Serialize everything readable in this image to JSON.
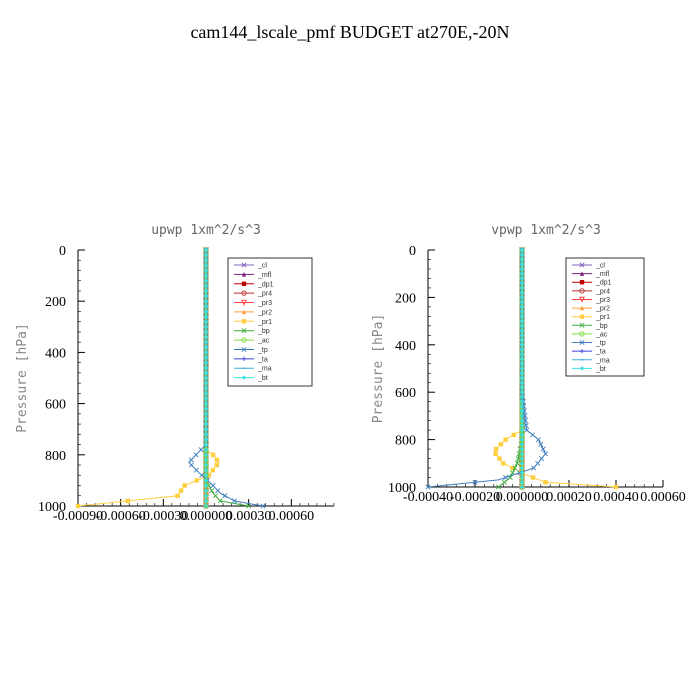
{
  "title": "cam144_lscale_pmf  BUDGET at270E,-20N",
  "chart_data": [
    {
      "type": "line",
      "title": "upwp   1xm^2/s^3",
      "ylabel": "Pressure [hPa]",
      "xlabel": "",
      "ylim": [
        1000,
        0
      ],
      "xlim": [
        -0.0009,
        0.0009
      ],
      "yticks": [
        0,
        200,
        400,
        600,
        800,
        1000
      ],
      "xticks": [
        "-0.00090",
        "-0.00060",
        "-0.00030",
        "0.000000",
        "0.00030",
        "0.00060"
      ],
      "xtick_values": [
        -0.0009,
        -0.0006,
        -0.0003,
        0,
        0.0003,
        0.0006
      ],
      "legend_position": "top-right",
      "series": [
        {
          "name": "_cl",
          "color": "#7f5fbf",
          "marker": "x",
          "x": [
            0,
            0,
            0,
            0,
            0,
            0,
            0,
            0,
            0,
            0,
            0
          ],
          "y": [
            0,
            100,
            200,
            300,
            400,
            500,
            600,
            700,
            800,
            900,
            1000
          ]
        },
        {
          "name": "_mfl",
          "color": "#7f1f7f",
          "marker": "triangle",
          "x": [
            0,
            0,
            0,
            0,
            0,
            0,
            0,
            0,
            0,
            0,
            0
          ],
          "y": [
            0,
            100,
            200,
            300,
            400,
            500,
            600,
            700,
            800,
            900,
            1000
          ]
        },
        {
          "name": "_dp1",
          "color": "#bf0000",
          "marker": "square",
          "x": [
            0,
            0,
            0,
            0,
            0,
            0,
            0,
            0,
            0,
            0,
            0
          ],
          "y": [
            0,
            100,
            200,
            300,
            400,
            500,
            600,
            700,
            800,
            900,
            1000
          ]
        },
        {
          "name": "_pr4",
          "color": "#bf2f2f",
          "marker": "circle",
          "x": [
            0,
            0,
            0,
            0,
            0,
            0,
            0,
            0,
            0,
            0,
            0
          ],
          "y": [
            0,
            100,
            200,
            300,
            400,
            500,
            600,
            700,
            800,
            900,
            1000
          ]
        },
        {
          "name": "_pr3",
          "color": "#ff3f3f",
          "marker": "triangle-down",
          "x": [
            0,
            0,
            0,
            0,
            0,
            0,
            0,
            0,
            0,
            0,
            0
          ],
          "y": [
            0,
            100,
            200,
            300,
            400,
            500,
            600,
            700,
            800,
            900,
            1000
          ]
        },
        {
          "name": "_pr2",
          "color": "#ff9f3f",
          "marker": "triangle",
          "x": [
            0,
            0,
            0,
            0,
            0,
            0,
            0,
            0,
            0,
            0,
            0
          ],
          "y": [
            0,
            100,
            200,
            300,
            400,
            500,
            600,
            700,
            800,
            900,
            1000
          ]
        },
        {
          "name": "_pr1",
          "color": "#ffcf3f",
          "marker": "square",
          "x": [
            0,
            0,
            0,
            0,
            0,
            0,
            0,
            5e-05,
            9e-05,
            2e-05,
            -0.00015,
            -0.0002,
            -0.0009
          ],
          "y": [
            0,
            200,
            400,
            600,
            700,
            750,
            780,
            800,
            830,
            880,
            920,
            960,
            1000
          ]
        },
        {
          "name": "_bp",
          "color": "#3faf3f",
          "marker": "x",
          "x": [
            0,
            0,
            0,
            0,
            0,
            5e-05,
            0.0001,
            0.0003
          ],
          "y": [
            0,
            400,
            700,
            850,
            900,
            950,
            980,
            1000
          ]
        },
        {
          "name": "_ac",
          "color": "#7fdf3f",
          "marker": "circle",
          "x": [
            0,
            0,
            0,
            0,
            0
          ],
          "y": [
            0,
            400,
            800,
            950,
            1000
          ]
        },
        {
          "name": "_tp",
          "color": "#3f7fbf",
          "marker": "x",
          "x": [
            0,
            0,
            0,
            0,
            -7e-05,
            -0.00012,
            -5e-05,
            5e-05,
            0.0001,
            0.0002,
            0.0004
          ],
          "y": [
            0,
            600,
            700,
            760,
            800,
            830,
            870,
            920,
            950,
            980,
            1000
          ]
        },
        {
          "name": "_ta",
          "color": "#3f3fdf",
          "marker": "plus",
          "x": [
            0,
            0,
            0,
            0,
            0
          ],
          "y": [
            0,
            400,
            800,
            950,
            1000
          ]
        },
        {
          "name": "_ma",
          "color": "#3fafdf",
          "marker": "dash",
          "x": [
            0,
            0,
            0,
            0,
            0
          ],
          "y": [
            0,
            400,
            800,
            950,
            1000
          ]
        },
        {
          "name": "_bt",
          "color": "#3fdfdf",
          "marker": "diamond",
          "x": [
            0,
            0,
            0,
            0,
            0
          ],
          "y": [
            0,
            400,
            800,
            950,
            1000
          ]
        }
      ]
    },
    {
      "type": "line",
      "title": "vpwp   1xm^2/s^3",
      "ylabel": "Pressure [hPa]",
      "xlabel": "",
      "ylim": [
        1000,
        0
      ],
      "xlim": [
        -0.0004,
        0.0006
      ],
      "yticks": [
        0,
        200,
        400,
        600,
        800,
        1000
      ],
      "xticks": [
        "-0.00040",
        "-0.00020",
        "0.000000",
        "0.00020",
        "0.00040",
        "0.00060"
      ],
      "xtick_values": [
        -0.0004,
        -0.0002,
        0,
        0.0002,
        0.0004,
        0.0006
      ],
      "legend_position": "top-right",
      "series": [
        {
          "name": "_cl",
          "color": "#7f5fbf",
          "marker": "x",
          "x": [
            0,
            0,
            0,
            0,
            0,
            0,
            0
          ],
          "y": [
            0,
            200,
            400,
            600,
            800,
            900,
            1000
          ]
        },
        {
          "name": "_mfl",
          "color": "#7f1f7f",
          "marker": "triangle",
          "x": [
            0,
            0,
            0,
            0,
            0,
            0,
            0
          ],
          "y": [
            0,
            200,
            400,
            600,
            800,
            900,
            1000
          ]
        },
        {
          "name": "_dp1",
          "color": "#bf0000",
          "marker": "square",
          "x": [
            0,
            0,
            0,
            0,
            0,
            0,
            0
          ],
          "y": [
            0,
            200,
            400,
            600,
            800,
            900,
            1000
          ]
        },
        {
          "name": "_pr4",
          "color": "#bf2f2f",
          "marker": "circle",
          "x": [
            0,
            0,
            0,
            0,
            0,
            0,
            0
          ],
          "y": [
            0,
            200,
            400,
            600,
            800,
            900,
            1000
          ]
        },
        {
          "name": "_pr3",
          "color": "#ff3f3f",
          "marker": "triangle-down",
          "x": [
            0,
            0,
            0,
            0,
            0,
            0,
            0
          ],
          "y": [
            0,
            200,
            400,
            600,
            800,
            900,
            1000
          ]
        },
        {
          "name": "_pr2",
          "color": "#ff9f3f",
          "marker": "triangle",
          "x": [
            0,
            0,
            0,
            0,
            0,
            0,
            0
          ],
          "y": [
            0,
            200,
            400,
            600,
            800,
            900,
            1000
          ]
        },
        {
          "name": "_pr1",
          "color": "#ffcf3f",
          "marker": "square",
          "x": [
            0,
            0,
            0,
            0,
            -7e-05,
            -0.00012,
            -8e-05,
            2e-05,
            0.0001,
            0.0004
          ],
          "y": [
            0,
            400,
            600,
            760,
            800,
            850,
            900,
            950,
            980,
            1000
          ]
        },
        {
          "name": "_bp",
          "color": "#3faf3f",
          "marker": "x",
          "x": [
            0,
            0,
            0,
            -2e-05,
            -5e-05,
            -0.0001
          ],
          "y": [
            0,
            400,
            800,
            900,
            960,
            1000
          ]
        },
        {
          "name": "_ac",
          "color": "#7fdf3f",
          "marker": "circle",
          "x": [
            0,
            0,
            0,
            0,
            0
          ],
          "y": [
            0,
            400,
            800,
            950,
            1000
          ]
        },
        {
          "name": "_tp",
          "color": "#3f7fbf",
          "marker": "x",
          "x": [
            0,
            0,
            0,
            2e-05,
            7e-05,
            0.0001,
            5e-05,
            -0.0001,
            -0.0004
          ],
          "y": [
            0,
            200,
            600,
            760,
            800,
            860,
            920,
            970,
            1000
          ]
        },
        {
          "name": "_ta",
          "color": "#3f3fdf",
          "marker": "plus",
          "x": [
            0,
            0,
            0,
            0,
            0
          ],
          "y": [
            0,
            400,
            800,
            950,
            1000
          ]
        },
        {
          "name": "_ma",
          "color": "#3fafdf",
          "marker": "dash",
          "x": [
            0,
            0,
            0,
            0,
            0
          ],
          "y": [
            0,
            400,
            800,
            950,
            1000
          ]
        },
        {
          "name": "_bt",
          "color": "#3fdfdf",
          "marker": "diamond",
          "x": [
            0,
            0,
            0,
            0,
            0
          ],
          "y": [
            0,
            400,
            800,
            950,
            1000
          ]
        }
      ]
    }
  ]
}
